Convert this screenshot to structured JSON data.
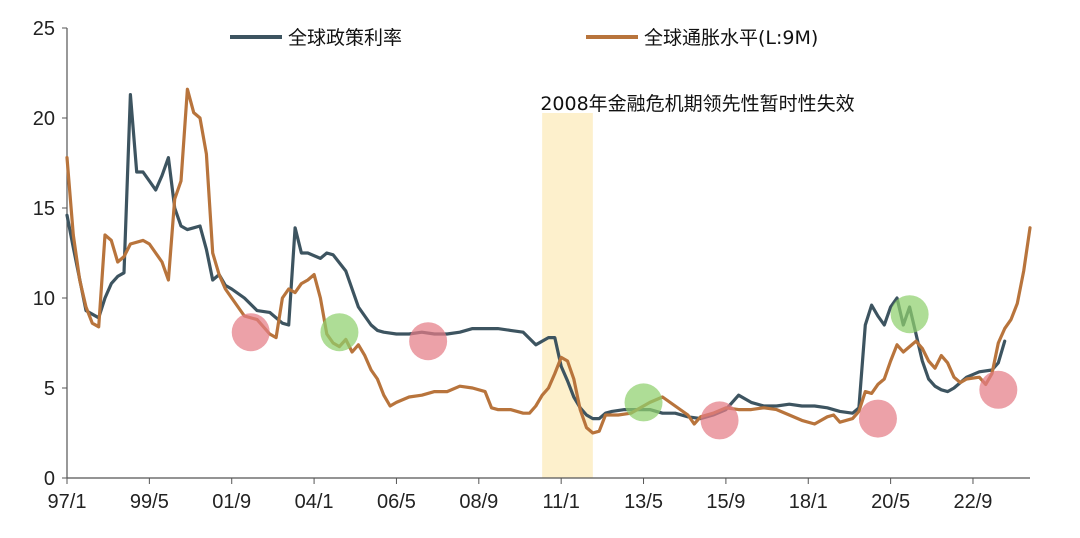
{
  "chart_data": {
    "type": "line",
    "title": "",
    "xlabel": "",
    "ylabel": "",
    "ylim": [
      0,
      25
    ],
    "yticks": [
      "0",
      "5",
      "10",
      "15",
      "20",
      "25"
    ],
    "xticks": [
      "97/1",
      "99/5",
      "01/9",
      "04/1",
      "06/5",
      "08/9",
      "11/1",
      "13/5",
      "15/9",
      "18/1",
      "20/5",
      "22/9"
    ],
    "legend_position": "top",
    "grid": false,
    "series": [
      {
        "name": "全球政策利率",
        "color": "#3d5460",
        "points": [
          [
            0,
            14.6
          ],
          [
            1,
            12.8
          ],
          [
            3,
            9.3
          ],
          [
            4,
            9.1
          ],
          [
            5,
            8.9
          ],
          [
            6,
            10.0
          ],
          [
            7,
            10.8
          ],
          [
            8,
            11.2
          ],
          [
            9,
            11.4
          ],
          [
            10,
            21.3
          ],
          [
            11,
            17.0
          ],
          [
            12,
            17.0
          ],
          [
            13,
            16.5
          ],
          [
            14,
            16.0
          ],
          [
            15,
            16.8
          ],
          [
            16,
            17.8
          ],
          [
            17,
            15.0
          ],
          [
            18,
            14.0
          ],
          [
            19,
            13.8
          ],
          [
            20,
            13.9
          ],
          [
            21,
            14.0
          ],
          [
            22,
            12.7
          ],
          [
            23,
            11.0
          ],
          [
            24,
            11.3
          ],
          [
            25,
            10.7
          ],
          [
            26,
            10.5
          ],
          [
            28,
            10.0
          ],
          [
            30,
            9.3
          ],
          [
            32,
            9.2
          ],
          [
            34,
            8.6
          ],
          [
            35,
            8.5
          ],
          [
            36,
            13.9
          ],
          [
            37,
            12.5
          ],
          [
            38,
            12.5
          ],
          [
            40,
            12.2
          ],
          [
            41,
            12.5
          ],
          [
            42,
            12.4
          ],
          [
            44,
            11.5
          ],
          [
            45,
            10.5
          ],
          [
            46,
            9.5
          ],
          [
            48,
            8.5
          ],
          [
            49,
            8.2
          ],
          [
            50,
            8.1
          ],
          [
            52,
            8.0
          ],
          [
            54,
            8.0
          ],
          [
            56,
            8.1
          ],
          [
            58,
            8.0
          ],
          [
            60,
            8.0
          ],
          [
            62,
            8.1
          ],
          [
            64,
            8.3
          ],
          [
            66,
            8.3
          ],
          [
            68,
            8.3
          ],
          [
            70,
            8.2
          ],
          [
            72,
            8.1
          ],
          [
            74,
            7.4
          ],
          [
            76,
            7.8
          ],
          [
            77,
            7.8
          ],
          [
            78,
            6.2
          ],
          [
            79,
            5.4
          ],
          [
            80,
            4.5
          ],
          [
            81,
            3.9
          ],
          [
            82,
            3.5
          ],
          [
            83,
            3.3
          ],
          [
            84,
            3.3
          ],
          [
            85,
            3.6
          ],
          [
            86,
            3.7
          ],
          [
            88,
            3.8
          ],
          [
            90,
            3.8
          ],
          [
            92,
            3.8
          ],
          [
            94,
            3.6
          ],
          [
            96,
            3.6
          ],
          [
            98,
            3.4
          ],
          [
            100,
            3.3
          ],
          [
            102,
            3.5
          ],
          [
            104,
            3.8
          ],
          [
            106,
            4.6
          ],
          [
            108,
            4.2
          ],
          [
            110,
            4.0
          ],
          [
            112,
            4.0
          ],
          [
            114,
            4.1
          ],
          [
            116,
            4.0
          ],
          [
            118,
            4.0
          ],
          [
            120,
            3.9
          ],
          [
            122,
            3.7
          ],
          [
            124,
            3.6
          ],
          [
            125,
            3.9
          ],
          [
            126,
            8.5
          ],
          [
            127,
            9.6
          ],
          [
            128,
            9.0
          ],
          [
            129,
            8.5
          ],
          [
            130,
            9.5
          ],
          [
            131,
            10.0
          ],
          [
            132,
            8.5
          ],
          [
            133,
            9.5
          ],
          [
            134,
            8.0
          ],
          [
            135,
            6.5
          ],
          [
            136,
            5.5
          ],
          [
            137,
            5.1
          ],
          [
            138,
            4.9
          ],
          [
            139,
            4.8
          ],
          [
            140,
            5.0
          ],
          [
            141,
            5.3
          ],
          [
            142,
            5.6
          ],
          [
            144,
            5.9
          ],
          [
            146,
            6.0
          ],
          [
            147,
            6.4
          ],
          [
            148,
            7.6
          ]
        ]
      },
      {
        "name": "全球通胀水平(L:9M)",
        "color": "#b8743c",
        "points": [
          [
            0,
            17.8
          ],
          [
            1,
            13.5
          ],
          [
            2,
            11.0
          ],
          [
            3,
            9.5
          ],
          [
            4,
            8.6
          ],
          [
            5,
            8.4
          ],
          [
            6,
            13.5
          ],
          [
            7,
            13.2
          ],
          [
            8,
            12.0
          ],
          [
            9,
            12.3
          ],
          [
            10,
            13.0
          ],
          [
            12,
            13.2
          ],
          [
            13,
            13.0
          ],
          [
            14,
            12.5
          ],
          [
            15,
            12.0
          ],
          [
            16,
            11.0
          ],
          [
            17,
            15.5
          ],
          [
            18,
            16.5
          ],
          [
            19,
            21.6
          ],
          [
            20,
            20.3
          ],
          [
            21,
            20.0
          ],
          [
            22,
            18.0
          ],
          [
            23,
            12.5
          ],
          [
            24,
            11.3
          ],
          [
            25,
            10.5
          ],
          [
            26,
            10.0
          ],
          [
            28,
            9.0
          ],
          [
            30,
            8.8
          ],
          [
            32,
            8.0
          ],
          [
            33,
            7.8
          ],
          [
            34,
            10.0
          ],
          [
            35,
            10.5
          ],
          [
            36,
            10.3
          ],
          [
            37,
            10.8
          ],
          [
            38,
            11.0
          ],
          [
            39,
            11.3
          ],
          [
            40,
            10.0
          ],
          [
            41,
            8.0
          ],
          [
            42,
            7.5
          ],
          [
            43,
            7.3
          ],
          [
            44,
            7.7
          ],
          [
            45,
            7.0
          ],
          [
            46,
            7.4
          ],
          [
            47,
            6.8
          ],
          [
            48,
            6.0
          ],
          [
            49,
            5.5
          ],
          [
            50,
            4.6
          ],
          [
            51,
            4.0
          ],
          [
            52,
            4.2
          ],
          [
            54,
            4.5
          ],
          [
            56,
            4.6
          ],
          [
            58,
            4.8
          ],
          [
            60,
            4.8
          ],
          [
            62,
            5.1
          ],
          [
            64,
            5.0
          ],
          [
            66,
            4.8
          ],
          [
            67,
            3.9
          ],
          [
            68,
            3.8
          ],
          [
            70,
            3.8
          ],
          [
            72,
            3.6
          ],
          [
            73,
            3.6
          ],
          [
            74,
            4.0
          ],
          [
            75,
            4.6
          ],
          [
            76,
            5.0
          ],
          [
            77,
            5.8
          ],
          [
            78,
            6.7
          ],
          [
            79,
            6.5
          ],
          [
            80,
            5.5
          ],
          [
            81,
            3.8
          ],
          [
            82,
            2.8
          ],
          [
            83,
            2.5
          ],
          [
            84,
            2.6
          ],
          [
            85,
            3.5
          ],
          [
            87,
            3.5
          ],
          [
            89,
            3.6
          ],
          [
            91,
            4.0
          ],
          [
            92,
            4.2
          ],
          [
            94,
            4.5
          ],
          [
            96,
            4.0
          ],
          [
            98,
            3.5
          ],
          [
            99,
            3.0
          ],
          [
            100,
            3.4
          ],
          [
            102,
            3.6
          ],
          [
            104,
            3.9
          ],
          [
            106,
            3.8
          ],
          [
            108,
            3.8
          ],
          [
            110,
            3.9
          ],
          [
            112,
            3.8
          ],
          [
            114,
            3.5
          ],
          [
            116,
            3.2
          ],
          [
            118,
            3.0
          ],
          [
            120,
            3.4
          ],
          [
            121,
            3.5
          ],
          [
            122,
            3.1
          ],
          [
            124,
            3.3
          ],
          [
            125,
            3.7
          ],
          [
            126,
            4.8
          ],
          [
            127,
            4.7
          ],
          [
            128,
            5.2
          ],
          [
            129,
            5.5
          ],
          [
            130,
            6.5
          ],
          [
            131,
            7.4
          ],
          [
            132,
            7.0
          ],
          [
            133,
            7.3
          ],
          [
            134,
            7.6
          ],
          [
            135,
            7.2
          ],
          [
            136,
            6.5
          ],
          [
            137,
            6.1
          ],
          [
            138,
            6.8
          ],
          [
            139,
            6.4
          ],
          [
            140,
            5.6
          ],
          [
            141,
            5.3
          ],
          [
            142,
            5.5
          ],
          [
            144,
            5.6
          ],
          [
            145,
            5.2
          ],
          [
            146,
            5.8
          ],
          [
            147,
            7.5
          ],
          [
            148,
            8.3
          ],
          [
            149,
            8.8
          ],
          [
            150,
            9.7
          ],
          [
            151,
            11.5
          ],
          [
            152,
            13.9
          ]
        ]
      }
    ],
    "shaded_band": {
      "label": "2008年金融危机期领先性暂时性失效",
      "color": "#fdf0cc",
      "x_range": [
        75,
        83
      ]
    },
    "markers": [
      {
        "x": 29,
        "y": 8.1,
        "color": "#e47d86"
      },
      {
        "x": 43,
        "y": 8.1,
        "color": "#8fd06e"
      },
      {
        "x": 57,
        "y": 7.6,
        "color": "#e47d86"
      },
      {
        "x": 91,
        "y": 4.2,
        "color": "#8fd06e"
      },
      {
        "x": 103,
        "y": 3.2,
        "color": "#e47d86"
      },
      {
        "x": 128,
        "y": 3.3,
        "color": "#e47d86"
      },
      {
        "x": 133,
        "y": 9.1,
        "color": "#8fd06e"
      },
      {
        "x": 147,
        "y": 4.9,
        "color": "#e47d86"
      }
    ]
  }
}
